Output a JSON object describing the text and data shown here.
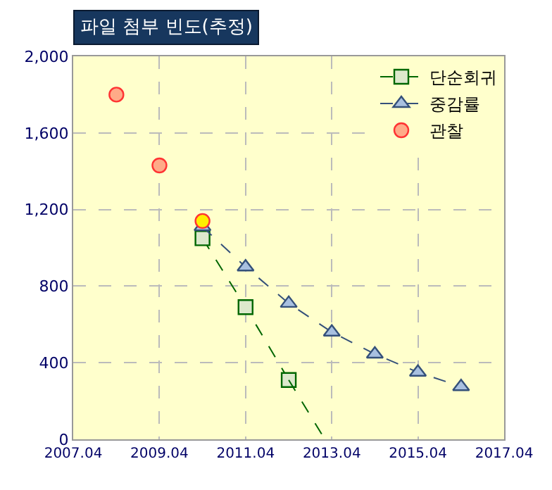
{
  "chart_data": {
    "type": "line",
    "title": "파일 첨부 빈도(추정)",
    "xlim": [
      "2007-04",
      "2017-04"
    ],
    "xticks": [
      {
        "value": "2007-04",
        "label": "2007.04"
      },
      {
        "value": "2009-04",
        "label": "2009.04"
      },
      {
        "value": "2011-04",
        "label": "2011.04"
      },
      {
        "value": "2013-04",
        "label": "2013.04"
      },
      {
        "value": "2015-04",
        "label": "2015.04"
      },
      {
        "value": "2017-04",
        "label": "2017.04"
      }
    ],
    "ylim": [
      0,
      2000
    ],
    "yticks": [
      {
        "value": 0,
        "label": "0"
      },
      {
        "value": 400,
        "label": "400"
      },
      {
        "value": 800,
        "label": "800"
      },
      {
        "value": 1200,
        "label": "1,200"
      },
      {
        "value": 1600,
        "label": "1,600"
      },
      {
        "value": 2000,
        "label": "2,000"
      }
    ],
    "grid": true,
    "legend": "top right",
    "line_style": "dashed",
    "series": [
      {
        "name": "단순회귀",
        "marker": "square",
        "color": "#006600",
        "x": [
          "2010-04",
          "2011-04",
          "2012-04"
        ],
        "values": [
          1050,
          690,
          310
        ]
      },
      {
        "marker": "none",
        "color": "#006600",
        "x": [
          "2012-04",
          "2013-02"
        ],
        "values": [
          310,
          0
        ]
      },
      {
        "name": "중감률",
        "marker": "triangle",
        "color": "#34507a",
        "x": [
          "2010-04",
          "2011-04",
          "2012-04",
          "2013-04",
          "2014-04",
          "2015-04",
          "2016-04"
        ],
        "values": [
          1110,
          900,
          710,
          560,
          445,
          350,
          275
        ]
      },
      {
        "name": "관찰",
        "type": "scatter",
        "marker": "circle",
        "color": "#ff3333",
        "colors": [
          "#ffaa88",
          "#ffaa88",
          "#ffee00"
        ],
        "x": [
          "2008-04",
          "2009-04",
          "2010-04"
        ],
        "values": [
          1800,
          1430,
          1140
        ]
      }
    ]
  }
}
